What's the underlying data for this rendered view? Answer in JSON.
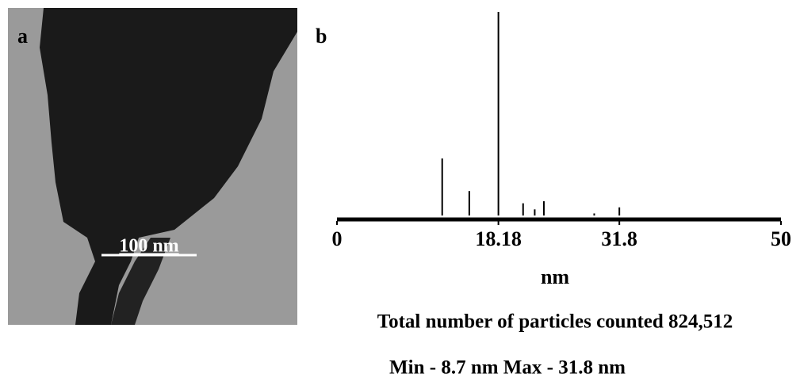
{
  "panel_a": {
    "label": "a",
    "scale_bar": "100 nm"
  },
  "chart_data": {
    "type": "bar",
    "panel_label": "b",
    "x": [
      11.85,
      14.9,
      18.18,
      20.96,
      22.27,
      23.3,
      28.97,
      31.8
    ],
    "values": [
      28,
      12,
      100,
      6,
      3,
      7,
      1,
      4
    ],
    "color": "#000000",
    "xlim": [
      0,
      50
    ],
    "xticks": [
      0,
      18.18,
      31.8,
      50
    ],
    "ylim": [
      0,
      100
    ],
    "xlabel": "nm",
    "annotations": [
      "Total number of particles counted 824,512",
      "Min - 8.7 nm  Max - 31.8 nm"
    ]
  }
}
